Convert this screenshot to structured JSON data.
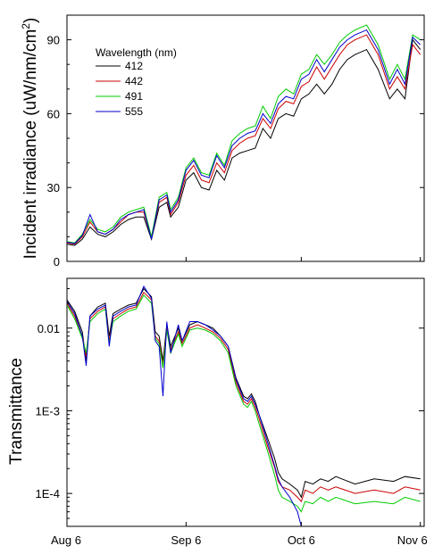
{
  "chart_data": [
    {
      "type": "line",
      "ylabel": "Incident irradiance (uW/nm/cm²)",
      "ylabel_main": "Incident irradiance (uW/nm/cm",
      "ylabel_sup": "2",
      "ylabel_end": ")",
      "ylim": [
        0,
        100
      ],
      "yticks": [
        0,
        30,
        60,
        90
      ],
      "ytick_labels": [
        "0",
        "30",
        "60",
        "90"
      ],
      "xlim": [
        0,
        93
      ],
      "legend": {
        "title": "Wavelength (nm)",
        "placement": "top-left"
      },
      "series": [
        {
          "name": "412",
          "color": "#000000",
          "x": [
            0,
            2,
            4,
            6,
            8,
            10,
            12,
            14,
            16,
            18,
            20,
            22,
            24,
            26,
            27,
            29,
            31,
            33,
            35,
            37,
            39,
            41,
            43,
            45,
            47,
            49,
            51,
            53,
            55,
            57,
            59,
            61,
            63,
            65,
            67,
            69,
            71,
            73,
            75,
            78,
            81,
            84,
            86,
            88,
            90,
            92
          ],
          "y": [
            7,
            6.5,
            9,
            14,
            11,
            10,
            12,
            15,
            17,
            18,
            18,
            9,
            22,
            24,
            18,
            22,
            33,
            36,
            30,
            29,
            37,
            33,
            42,
            44,
            45,
            46,
            54,
            50,
            58,
            60,
            59,
            66,
            68,
            72,
            68,
            72,
            78,
            82,
            84,
            86,
            78,
            66,
            70,
            66,
            90,
            86
          ]
        },
        {
          "name": "442",
          "color": "#cc0000",
          "x": [
            0,
            2,
            4,
            6,
            8,
            10,
            12,
            14,
            16,
            18,
            20,
            22,
            24,
            26,
            27,
            29,
            31,
            33,
            35,
            37,
            39,
            41,
            43,
            45,
            47,
            49,
            51,
            53,
            55,
            57,
            59,
            61,
            63,
            65,
            67,
            69,
            71,
            73,
            75,
            78,
            81,
            84,
            86,
            88,
            90,
            92
          ],
          "y": [
            7.5,
            7,
            10,
            16,
            12,
            11,
            13,
            16,
            19,
            20,
            20,
            9.5,
            24,
            26,
            19,
            24,
            35,
            39,
            33,
            32,
            40,
            36,
            45,
            48,
            50,
            51,
            58,
            54,
            62,
            65,
            64,
            71,
            73,
            79,
            74,
            79,
            84,
            88,
            90,
            92,
            84,
            70,
            75,
            70,
            88,
            84
          ]
        },
        {
          "name": "491",
          "color": "#00cc00",
          "x": [
            0,
            2,
            4,
            6,
            8,
            10,
            12,
            14,
            16,
            18,
            20,
            22,
            24,
            26,
            27,
            29,
            31,
            33,
            35,
            37,
            39,
            41,
            43,
            45,
            47,
            49,
            51,
            53,
            55,
            57,
            59,
            61,
            63,
            65,
            67,
            69,
            71,
            73,
            75,
            78,
            81,
            84,
            86,
            88,
            90,
            92
          ],
          "y": [
            8,
            7.5,
            11,
            17,
            13,
            12,
            14,
            18,
            20,
            21,
            22,
            10,
            26,
            28,
            21,
            26,
            38,
            42,
            36,
            35,
            44,
            39,
            49,
            52,
            54,
            55,
            63,
            58,
            67,
            70,
            68,
            76,
            78,
            84,
            80,
            84,
            89,
            92,
            94,
            96,
            88,
            74,
            80,
            74,
            92,
            90
          ]
        },
        {
          "name": "555",
          "color": "#0000cc",
          "x": [
            0,
            2,
            4,
            6,
            8,
            10,
            12,
            14,
            16,
            18,
            20,
            22,
            24,
            26,
            27,
            29,
            31,
            33,
            35,
            37,
            39,
            41,
            43,
            45,
            47,
            49,
            51,
            53,
            55,
            57,
            59,
            61,
            63,
            65,
            67,
            69,
            71,
            73,
            75,
            78,
            81,
            84,
            86,
            88,
            90,
            92
          ],
          "y": [
            7.8,
            7.2,
            10.5,
            19,
            12,
            11,
            13,
            17,
            19,
            20,
            21,
            9,
            25,
            27,
            20,
            25,
            37,
            41,
            35,
            34,
            43,
            38,
            47,
            50,
            52,
            53,
            60,
            56,
            64,
            67,
            66,
            74,
            76,
            82,
            77,
            82,
            87,
            90,
            92,
            94,
            86,
            72,
            78,
            72,
            91,
            88
          ]
        }
      ]
    },
    {
      "type": "line",
      "ylabel": "Transmittance",
      "scale": "log",
      "ylim": [
        4e-05,
        0.04
      ],
      "yticks": [
        0.0001,
        0.001,
        0.01
      ],
      "ytick_labels": [
        "1E-4",
        "1E-3",
        "0.01"
      ],
      "xlim": [
        0,
        93
      ],
      "xticks": [
        0,
        31,
        61,
        92
      ],
      "xtick_labels": [
        "Aug 6",
        "Sep 6",
        "Oct 6",
        "Nov 6"
      ],
      "series": [
        {
          "name": "412",
          "color": "#000000",
          "x": [
            0,
            2,
            4,
            5,
            6,
            8,
            10,
            11,
            12,
            14,
            16,
            18,
            20,
            22,
            23,
            24,
            25,
            26,
            27,
            29,
            30,
            32,
            34,
            36,
            38,
            40,
            42,
            44,
            46,
            47,
            48,
            49,
            50,
            52,
            54,
            55,
            56,
            58,
            60,
            61,
            62,
            64,
            66,
            68,
            70,
            75,
            80,
            85,
            88,
            92
          ],
          "y": [
            0.022,
            0.016,
            0.009,
            0.004,
            0.014,
            0.018,
            0.02,
            0.008,
            0.015,
            0.017,
            0.019,
            0.02,
            0.03,
            0.024,
            0.009,
            0.008,
            0.004,
            0.011,
            0.006,
            0.01,
            0.007,
            0.011,
            0.012,
            0.011,
            0.01,
            0.008,
            0.006,
            0.0025,
            0.0015,
            0.0014,
            0.0016,
            0.0013,
            0.0009,
            0.0005,
            0.00027,
            0.00018,
            0.00015,
            0.00013,
            0.00011,
            9e-05,
            0.00014,
            0.00013,
            0.00015,
            0.00014,
            0.00016,
            0.00013,
            0.00015,
            0.00014,
            0.00016,
            0.00015
          ]
        },
        {
          "name": "442",
          "color": "#cc0000",
          "x": [
            0,
            2,
            4,
            5,
            6,
            8,
            10,
            11,
            12,
            14,
            16,
            18,
            20,
            22,
            23,
            24,
            25,
            26,
            27,
            29,
            30,
            32,
            34,
            36,
            38,
            40,
            42,
            44,
            46,
            47,
            48,
            49,
            50,
            52,
            54,
            55,
            56,
            58,
            60,
            61,
            62,
            64,
            66,
            68,
            70,
            75,
            80,
            85,
            88,
            92
          ],
          "y": [
            0.02,
            0.014,
            0.008,
            0.0045,
            0.013,
            0.016,
            0.018,
            0.007,
            0.013,
            0.015,
            0.017,
            0.018,
            0.027,
            0.022,
            0.008,
            0.007,
            0.0035,
            0.01,
            0.0055,
            0.009,
            0.0065,
            0.01,
            0.011,
            0.01,
            0.009,
            0.0075,
            0.0055,
            0.0022,
            0.0013,
            0.0012,
            0.0014,
            0.0011,
            0.0008,
            0.0004,
            0.00021,
            0.00014,
            0.00012,
            0.00011,
            9e-05,
            8e-05,
            0.00011,
            0.0001,
            0.00012,
            0.00011,
            0.00012,
            0.0001,
            0.00011,
            0.0001,
            0.00012,
            0.00011
          ]
        },
        {
          "name": "491",
          "color": "#00cc00",
          "x": [
            0,
            2,
            4,
            5,
            6,
            8,
            10,
            11,
            12,
            14,
            16,
            18,
            20,
            22,
            23,
            24,
            25,
            26,
            27,
            29,
            30,
            32,
            34,
            36,
            38,
            40,
            42,
            44,
            46,
            47,
            48,
            49,
            50,
            52,
            54,
            55,
            56,
            58,
            60,
            61,
            62,
            64,
            66,
            68,
            70,
            75,
            80,
            85,
            88,
            92
          ],
          "y": [
            0.019,
            0.013,
            0.0075,
            0.005,
            0.012,
            0.015,
            0.017,
            0.0065,
            0.012,
            0.014,
            0.016,
            0.017,
            0.025,
            0.02,
            0.0075,
            0.0065,
            0.0033,
            0.0095,
            0.005,
            0.0085,
            0.006,
            0.0095,
            0.01,
            0.0095,
            0.0085,
            0.007,
            0.005,
            0.002,
            0.0012,
            0.0011,
            0.0013,
            0.001,
            0.0007,
            0.00035,
            0.00017,
            0.00011,
            9e-05,
            8e-05,
            7e-05,
            6e-05,
            8e-05,
            7.5e-05,
            9e-05,
            8e-05,
            9e-05,
            7.5e-05,
            8e-05,
            7.5e-05,
            9e-05,
            8e-05
          ]
        },
        {
          "name": "555",
          "color": "#0000cc",
          "x": [
            0,
            2,
            4,
            5,
            6,
            8,
            10,
            11,
            12,
            14,
            16,
            18,
            20,
            22,
            23,
            24,
            25,
            26,
            27,
            29,
            30,
            32,
            34,
            36,
            38,
            40,
            42,
            44,
            46,
            47,
            48,
            49,
            50,
            52,
            54,
            55,
            56,
            58,
            60,
            61
          ],
          "y": [
            0.021,
            0.015,
            0.008,
            0.0035,
            0.014,
            0.017,
            0.019,
            0.006,
            0.014,
            0.016,
            0.018,
            0.019,
            0.032,
            0.023,
            0.007,
            0.006,
            0.0015,
            0.012,
            0.005,
            0.011,
            0.007,
            0.012,
            0.012,
            0.011,
            0.0095,
            0.008,
            0.006,
            0.0024,
            0.0014,
            0.0013,
            0.0015,
            0.0012,
            0.0009,
            0.00045,
            0.00022,
            0.00015,
            0.00012,
            9e-05,
            6e-05,
            4e-05
          ]
        }
      ]
    }
  ]
}
